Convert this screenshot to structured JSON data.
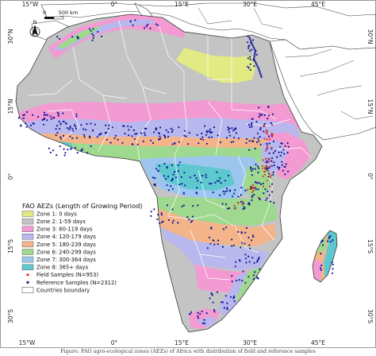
{
  "axes": {
    "lon_ticks": [
      "15°W",
      "0°",
      "15°E",
      "30°E",
      "45°E"
    ],
    "lat_ticks": [
      "30°N",
      "15°N",
      "0°",
      "15°S",
      "30°S"
    ]
  },
  "north_arrow": {
    "label": "N"
  },
  "scale_bar": {
    "zero_label": "0",
    "end_label": "500 km"
  },
  "legend": {
    "title": "FAO AEZs (Length of Growing Period)",
    "items": [
      {
        "label": "Zone 1: 0 days",
        "color": "#e2ea84",
        "kind": "patch"
      },
      {
        "label": "Zone 2: 1-59 days",
        "color": "#c4c4c4",
        "kind": "patch"
      },
      {
        "label": "Zone 3: 60-119 days",
        "color": "#f39ad2",
        "kind": "patch"
      },
      {
        "label": "Zone 4: 120-179 days",
        "color": "#b8b8ee",
        "kind": "patch"
      },
      {
        "label": "Zone 5: 180-239 days",
        "color": "#f3b48a",
        "kind": "patch"
      },
      {
        "label": "Zone 6: 240-299 days",
        "color": "#9fd88f",
        "kind": "patch"
      },
      {
        "label": "Zone 7: 300-364 days",
        "color": "#9dc6ef",
        "kind": "patch"
      },
      {
        "label": "Zone 8: 365+ days",
        "color": "#5ec8cf",
        "kind": "patch"
      },
      {
        "label": "Field Samples (N=953)",
        "color": "#e0301e",
        "kind": "point"
      },
      {
        "label": "Reference Samples (N=2312)",
        "color": "#10189a",
        "kind": "point"
      },
      {
        "label": "Countries boundary",
        "color": "#ffffff",
        "kind": "boundary"
      }
    ]
  },
  "caption": "Figure: FAO agro-ecological zones (AEZs) of Africa with distribution of field and reference samples"
}
